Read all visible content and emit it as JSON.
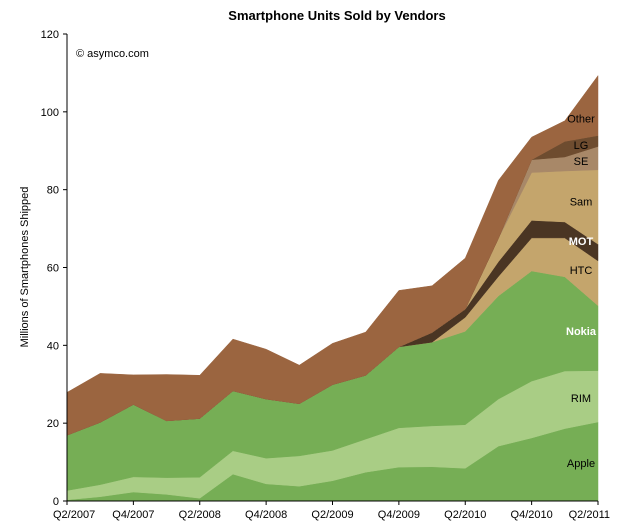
{
  "chart_data": {
    "type": "area",
    "stacked": true,
    "title": "Smartphone Units Sold by Vendors",
    "ylabel": "Millions of Smartphones Shipped",
    "credit": "© asymco.com",
    "ylim": [
      0,
      120
    ],
    "yticks": [
      0,
      20,
      40,
      60,
      80,
      100,
      120
    ],
    "x": [
      "Q2/2007",
      "Q3/2007",
      "Q4/2007",
      "Q1/2008",
      "Q2/2008",
      "Q3/2008",
      "Q4/2008",
      "Q1/2009",
      "Q2/2009",
      "Q3/2009",
      "Q4/2009",
      "Q1/2010",
      "Q2/2010",
      "Q3/2010",
      "Q4/2010",
      "Q1/2011",
      "Q2/2011"
    ],
    "x_tick_labels": [
      "Q2/2007",
      "Q4/2007",
      "Q2/2008",
      "Q4/2008",
      "Q2/2009",
      "Q4/2009",
      "Q2/2010",
      "Q4/2010",
      "Q2/2011"
    ],
    "series": [
      {
        "name": "Apple",
        "color": "#76ae55",
        "label_color": "#000000",
        "values": [
          0.3,
          1.1,
          2.3,
          1.7,
          0.7,
          6.9,
          4.4,
          3.8,
          5.2,
          7.4,
          8.7,
          8.8,
          8.4,
          14.1,
          16.2,
          18.6,
          20.3
        ]
      },
      {
        "name": "RIM",
        "color": "#a9cd85",
        "label_color": "#000000",
        "values": [
          2.4,
          3.1,
          3.9,
          4.3,
          5.4,
          6.0,
          6.6,
          7.8,
          7.8,
          8.5,
          10.1,
          10.5,
          11.2,
          12.1,
          14.6,
          14.8,
          13.2
        ]
      },
      {
        "name": "Nokia",
        "color": "#76ae55",
        "label_color": "#ffffff",
        "values": [
          14.2,
          16.0,
          18.6,
          14.6,
          15.1,
          15.4,
          15.2,
          13.4,
          16.9,
          16.4,
          20.8,
          21.5,
          24.0,
          26.5,
          28.3,
          24.2,
          16.7
        ]
      },
      {
        "name": "HTC",
        "color": "#c4a56c",
        "label_color": "#000000",
        "values": [
          0,
          0,
          0,
          0,
          0,
          0,
          0,
          0,
          0,
          0,
          0,
          0,
          3.6,
          5.0,
          8.5,
          10.0,
          11.5
        ]
      },
      {
        "name": "MOT",
        "color": "#4a3523",
        "label_color": "#ffffff",
        "values": [
          0,
          0,
          0,
          0,
          0,
          0,
          0,
          0,
          0,
          0,
          0,
          2.5,
          2.1,
          3.8,
          4.5,
          4.1,
          4.3
        ]
      },
      {
        "name": "Sam",
        "color": "#c4a56c",
        "label_color": "#000000",
        "values": [
          0,
          0,
          0,
          0,
          0,
          0,
          0,
          0,
          0,
          0,
          0,
          0,
          0,
          6.0,
          12.3,
          13.1,
          19.1
        ]
      },
      {
        "name": "SE",
        "color": "#a88868",
        "label_color": "#000000",
        "values": [
          0,
          0,
          0,
          0,
          0,
          0,
          0,
          0,
          0,
          0,
          0,
          0,
          0,
          0,
          3.3,
          3.6,
          6.0
        ]
      },
      {
        "name": "LG",
        "color": "#6e4c2f",
        "label_color": "#000000",
        "values": [
          0,
          0,
          0,
          0,
          0,
          0,
          0,
          0,
          0,
          0,
          0,
          0,
          0,
          0,
          0,
          4.0,
          2.8
        ]
      },
      {
        "name": "Other",
        "color": "#9b6540",
        "label_color": "#000000",
        "values": [
          11.0,
          12.6,
          7.6,
          11.9,
          11.1,
          13.3,
          12.8,
          9.9,
          10.6,
          11.1,
          14.5,
          12.0,
          13.1,
          14.9,
          5.8,
          5.3,
          15.4
        ]
      }
    ]
  }
}
